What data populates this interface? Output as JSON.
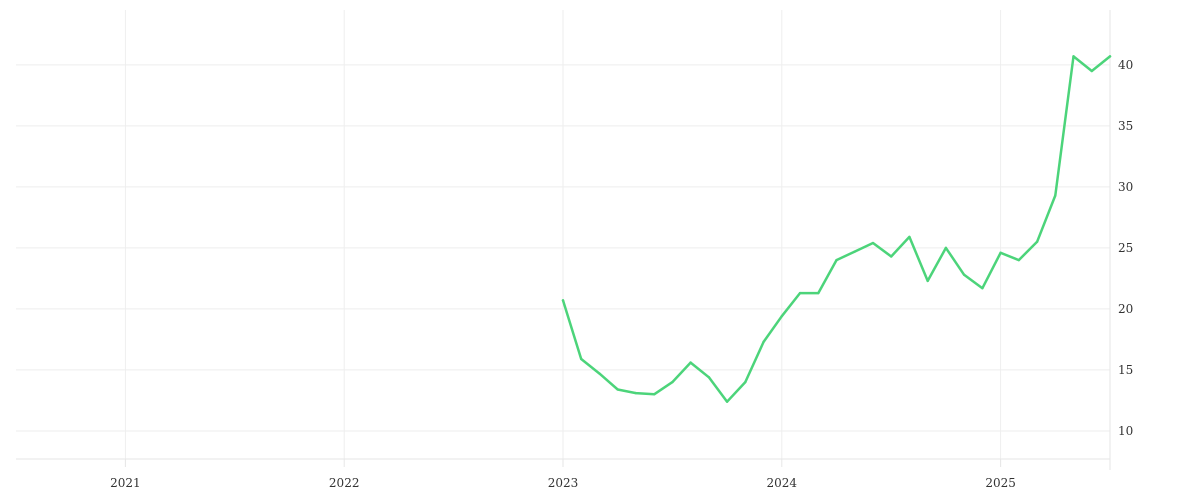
{
  "chart_data": {
    "type": "line",
    "title": "",
    "xlabel": "",
    "ylabel": "",
    "x_ticks": [
      "2021",
      "2022",
      "2023",
      "2024",
      "2025"
    ],
    "y_ticks": [
      10,
      15,
      20,
      25,
      30,
      35,
      40
    ],
    "xlim": [
      "2020-07",
      "2025-07"
    ],
    "ylim": [
      7.7,
      44.5
    ],
    "y_axis_position": "right",
    "grid": true,
    "series": [
      {
        "color": "#4cd47a",
        "x": [
          "2023-01",
          "2023-02",
          "2023-03",
          "2023-04",
          "2023-05",
          "2023-06",
          "2023-07",
          "2023-08",
          "2023-09",
          "2023-10",
          "2023-11",
          "2023-12",
          "2024-01",
          "2024-02",
          "2024-03",
          "2024-04",
          "2024-05",
          "2024-06",
          "2024-07",
          "2024-08",
          "2024-09",
          "2024-10",
          "2024-11",
          "2024-12",
          "2025-01",
          "2025-02",
          "2025-03",
          "2025-04",
          "2025-05",
          "2025-06",
          "2025-07"
        ],
        "values": [
          20.7,
          15.9,
          14.7,
          13.4,
          13.1,
          13.0,
          14.0,
          15.6,
          14.4,
          12.4,
          14.0,
          17.3,
          19.4,
          21.3,
          21.3,
          24.0,
          24.7,
          25.4,
          24.3,
          25.9,
          22.3,
          25.0,
          22.8,
          21.7,
          24.6,
          24.0,
          25.5,
          29.3,
          40.7,
          39.5,
          40.7
        ]
      }
    ]
  }
}
